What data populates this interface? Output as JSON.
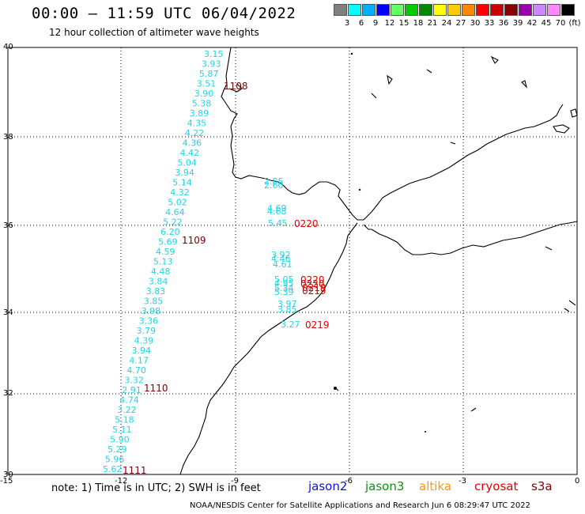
{
  "header": {
    "title": "00:00 – 11:59 UTC 06/04/2022",
    "subtitle": "12 hour collection of altimeter wave heights"
  },
  "scale": {
    "colors": [
      "#808080",
      "#00ffff",
      "#00b0ff",
      "#0000ff",
      "#66ff66",
      "#00cc00",
      "#008800",
      "#ffff00",
      "#ffcc00",
      "#ff8800",
      "#ff0000",
      "#cc0000",
      "#880000",
      "#9900aa",
      "#cc88ff",
      "#ff88ff",
      "#000000"
    ],
    "labels": [
      "3",
      "6",
      "9",
      "12",
      "15",
      "18",
      "21",
      "24",
      "27",
      "30",
      "33",
      "36",
      "39",
      "42",
      "45",
      "70",
      "(ft)"
    ]
  },
  "axes": {
    "lat_labels": [
      "40",
      "38",
      "36",
      "34",
      "32",
      "30"
    ],
    "lon_labels": [
      "-15",
      "-12",
      "-9",
      "-6",
      "-3",
      "0"
    ]
  },
  "track_west": [
    "3.15",
    "3.93",
    "5.87",
    "3.51",
    "3.90",
    "5.38",
    "3.89",
    "4.35",
    "4.22",
    "4.36",
    "4.42",
    "5.04",
    "3.94",
    "5.14",
    "4.32",
    "5.02",
    "4.64",
    "5.22",
    "6.20",
    "5.69",
    "4.59",
    "5.13",
    "4.48",
    "3.84",
    "3.83",
    "3.85",
    "3.98",
    "3.36",
    "3.79",
    "4.39",
    "3.94",
    "4.17",
    "4.70",
    "3.32",
    "2.91",
    "4.74",
    "3.22",
    "5.18",
    "5.11",
    "5.90",
    "5.29",
    "5.96",
    "5.62"
  ],
  "track_east": [
    "2.85",
    "2.60",
    "4.69",
    "4.68",
    "5.45",
    "3.92",
    "4.46",
    "4.61",
    "5.05",
    "4.95",
    "5.34",
    "5.39",
    "3.97",
    "3.85",
    "3.27"
  ],
  "times_west": [
    "1108",
    "1109",
    "1110",
    "1111"
  ],
  "times_east": [
    "0220",
    "0220",
    "0220",
    "0219",
    "0219",
    "0219"
  ],
  "colors": {
    "wave": "#22d3e6",
    "time_west": "#7a0000",
    "time_east": "#e00000"
  },
  "footer": {
    "note": "note: 1) Time is in UTC; 2) SWH is in feet",
    "sat_jason2": "jason2",
    "sat_jason3": "jason3",
    "sat_altika": "altika",
    "sat_cryosat": "cryosat",
    "sat_s3a": "s3a",
    "credit": "NOAA/NESDIS Center for Satellite Applications and Research   Jun  6 08:29:47 UTC 2022"
  }
}
